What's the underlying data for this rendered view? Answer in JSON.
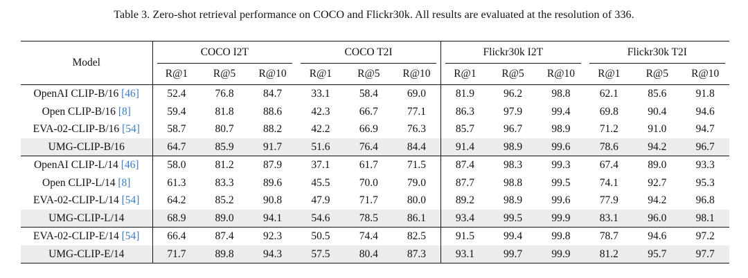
{
  "caption": "Table 3. Zero-shot retrieval performance on COCO and Flickr30k. All results are evaluated at the resolution of 336.",
  "header": {
    "model": "Model",
    "groups": [
      "COCO I2T",
      "COCO T2I",
      "Flickr30k I2T",
      "Flickr30k T2I"
    ],
    "metrics": [
      "R@1",
      "R@5",
      "R@10",
      "R@1",
      "R@5",
      "R@10",
      "R@1",
      "R@5",
      "R@10",
      "R@1",
      "R@5",
      "R@10"
    ]
  },
  "sections": [
    {
      "rows": [
        {
          "name": "OpenAI CLIP-B/16 ",
          "ref": "[46]",
          "highlight": false,
          "values": [
            "52.4",
            "76.8",
            "84.7",
            "33.1",
            "58.4",
            "69.0",
            "81.9",
            "96.2",
            "98.8",
            "62.1",
            "85.6",
            "91.8"
          ]
        },
        {
          "name": "Open CLIP-B/16 ",
          "ref": "[8]",
          "highlight": false,
          "values": [
            "59.4",
            "81.8",
            "88.6",
            "42.3",
            "66.7",
            "77.1",
            "86.3",
            "97.9",
            "99.4",
            "69.8",
            "90.4",
            "94.6"
          ]
        },
        {
          "name": "EVA-02-CLIP-B/16 ",
          "ref": "[54]",
          "highlight": false,
          "values": [
            "58.7",
            "80.7",
            "88.2",
            "42.2",
            "66.9",
            "76.3",
            "85.7",
            "96.7",
            "98.9",
            "71.2",
            "91.0",
            "94.7"
          ]
        },
        {
          "name": "UMG-CLIP-B/16",
          "ref": "",
          "highlight": true,
          "values": [
            "64.7",
            "85.9",
            "91.7",
            "51.6",
            "76.4",
            "84.4",
            "91.4",
            "98.9",
            "99.6",
            "78.6",
            "94.2",
            "96.7"
          ]
        }
      ]
    },
    {
      "rows": [
        {
          "name": "OpenAI CLIP-L/14 ",
          "ref": "[46]",
          "highlight": false,
          "values": [
            "58.0",
            "81.2",
            "87.9",
            "37.1",
            "61.7",
            "71.5",
            "87.4",
            "98.3",
            "99.3",
            "67.4",
            "89.0",
            "93.3"
          ]
        },
        {
          "name": "Open CLIP-L/14 ",
          "ref": "[8]",
          "highlight": false,
          "values": [
            "61.3",
            "83.3",
            "89.6",
            "45.5",
            "70.0",
            "79.0",
            "87.7",
            "98.8",
            "99.5",
            "74.1",
            "92.7",
            "95.3"
          ]
        },
        {
          "name": "EVA-02-CLIP-L/14 ",
          "ref": "[54]",
          "highlight": false,
          "values": [
            "64.2",
            "85.2",
            "90.8",
            "47.9",
            "71.7",
            "80.0",
            "89.2",
            "98.9",
            "99.6",
            "77.9",
            "94.2",
            "96.8"
          ]
        },
        {
          "name": "UMG-CLIP-L/14",
          "ref": "",
          "highlight": true,
          "values": [
            "68.9",
            "89.0",
            "94.1",
            "54.6",
            "78.5",
            "86.1",
            "93.4",
            "99.5",
            "99.9",
            "83.1",
            "96.0",
            "98.1"
          ]
        }
      ]
    },
    {
      "rows": [
        {
          "name": "EVA-02-CLIP-E/14 ",
          "ref": "[54]",
          "highlight": false,
          "values": [
            "66.4",
            "87.4",
            "92.3",
            "50.5",
            "74.4",
            "82.5",
            "91.5",
            "99.4",
            "99.8",
            "78.7",
            "94.6",
            "97.2"
          ]
        },
        {
          "name": "UMG-CLIP-E/14",
          "ref": "",
          "highlight": true,
          "values": [
            "71.7",
            "89.8",
            "94.3",
            "57.5",
            "80.4",
            "87.3",
            "93.1",
            "99.7",
            "99.9",
            "81.2",
            "95.7",
            "97.7"
          ]
        }
      ]
    }
  ]
}
